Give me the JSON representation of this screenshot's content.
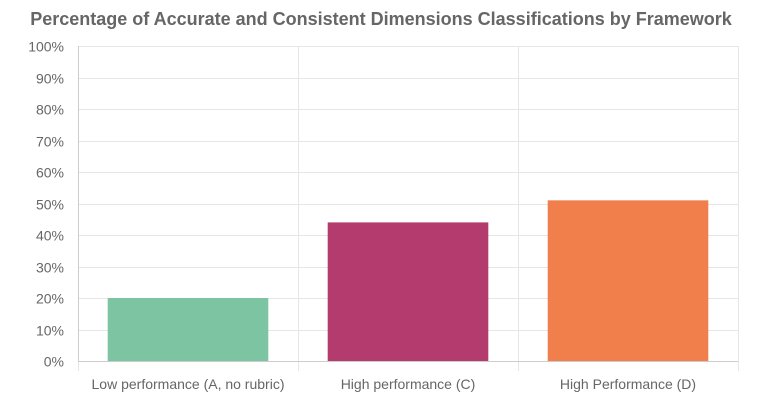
{
  "chart_data": {
    "type": "bar",
    "title": "Percentage of Accurate and Consistent Dimensions Classifications by Framework",
    "xlabel": "",
    "ylabel": "",
    "categories": [
      "Low performance (A, no rubric)",
      "High performance (C)",
      "High Performance (D)"
    ],
    "values": [
      20,
      44,
      51
    ],
    "colors": [
      "#7dc4a3",
      "#b43b6d",
      "#f07f4c"
    ],
    "ylim": [
      0,
      100
    ],
    "yticks": [
      0,
      10,
      20,
      30,
      40,
      50,
      60,
      70,
      80,
      90,
      100
    ],
    "ytick_labels": [
      "0%",
      "10%",
      "20%",
      "30%",
      "40%",
      "50%",
      "60%",
      "70%",
      "80%",
      "90%",
      "100%"
    ],
    "grid": true,
    "legend": "none"
  }
}
